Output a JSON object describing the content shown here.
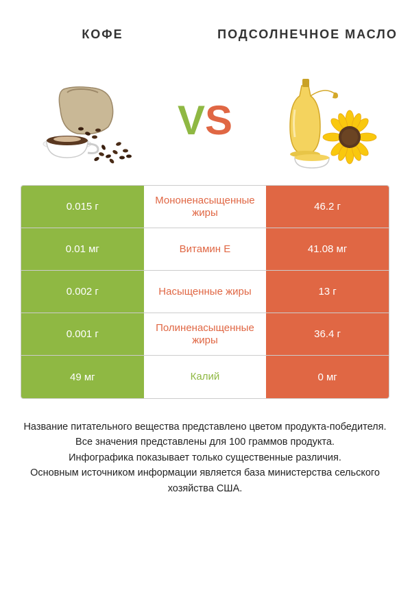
{
  "titles": {
    "left": "КОФЕ",
    "right": "ПОДСОЛНЕЧНОЕ МАСЛО"
  },
  "vs": {
    "v": "V",
    "s": "S"
  },
  "colors": {
    "left_win": "#8fb843",
    "right_win": "#e06744",
    "lose_bg": "#ffffff",
    "lose_text": "#333333",
    "mid_text_left": "#8fb843",
    "mid_text_right": "#e06744"
  },
  "rows": [
    {
      "left_val": "0.015 г",
      "label": "Мононенасыщенные жиры",
      "right_val": "46.2 г",
      "winner": "right"
    },
    {
      "left_val": "0.01 мг",
      "label": "Витамин E",
      "right_val": "41.08 мг",
      "winner": "right"
    },
    {
      "left_val": "0.002 г",
      "label": "Насыщенные жиры",
      "right_val": "13 г",
      "winner": "right"
    },
    {
      "left_val": "0.001 г",
      "label": "Полиненасыщенные жиры",
      "right_val": "36.4 г",
      "winner": "right"
    },
    {
      "left_val": "49 мг",
      "label": "Калий",
      "right_val": "0 мг",
      "winner": "left"
    }
  ],
  "footnote": {
    "l1": "Название питательного вещества представлено цветом продукта-победителя.",
    "l2": "Все значения представлены для 100 граммов продукта.",
    "l3": "Инфографика показывает только существенные различия.",
    "l4": "Основным источником информации является база министерства сельского хозяйства США."
  }
}
